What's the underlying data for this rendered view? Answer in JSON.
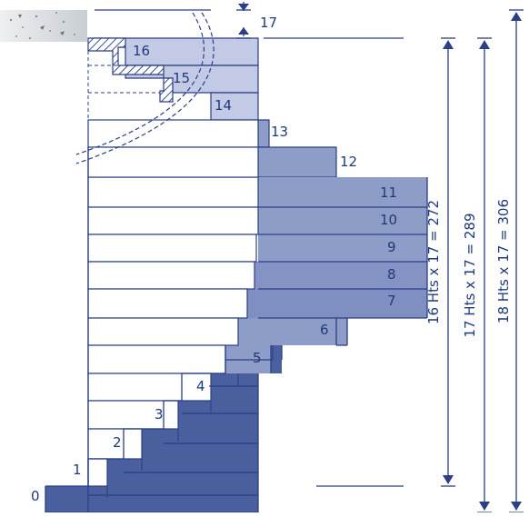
{
  "diagram": {
    "colors": {
      "line": "#2b3f86",
      "text": "#1f3a7a",
      "dark_fill": "#4a5f9e",
      "mid_fill": "#8e9cc8",
      "light_fill": "#c3cae6",
      "hatch": "#3a4f94",
      "concrete": "#cdd2d6"
    },
    "step_numbers": [
      "0",
      "1",
      "2",
      "3",
      "4",
      "5",
      "6",
      "7",
      "8",
      "9",
      "10",
      "11",
      "12",
      "13",
      "14",
      "15",
      "16"
    ],
    "top_riser_label": "17",
    "dimension_labels": {
      "d16": "16 Hts x 17 = 272",
      "d17": "17 Hts x 17 = 289",
      "d18": "18 Hts x 17 = 306"
    },
    "icons": [
      "concrete-slab-icon",
      "hatch-landing-icon",
      "arrow-up-icon",
      "arrow-down-icon"
    ]
  }
}
